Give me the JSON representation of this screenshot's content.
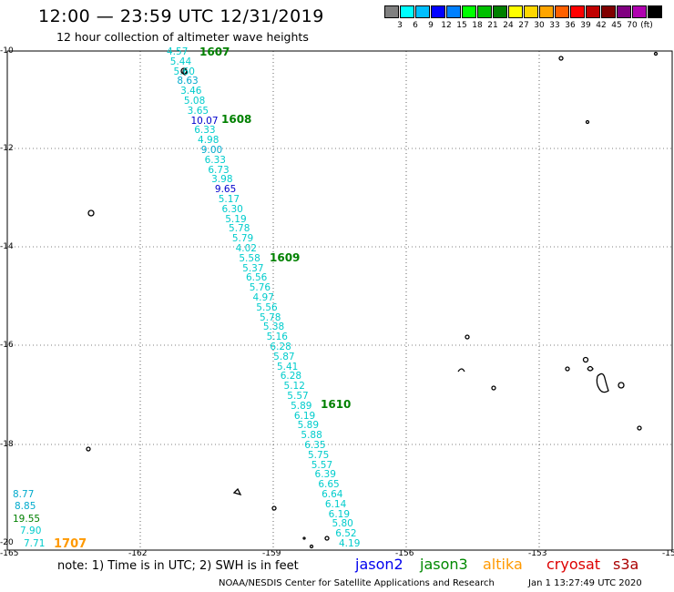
{
  "title": "12:00 — 23:59 UTC 12/31/2019",
  "subtitle": "12 hour collection of altimeter wave heights",
  "colorbar": {
    "colors": [
      "#808080",
      "#00ffff",
      "#00bfff",
      "#0000ff",
      "#0080ff",
      "#00ff00",
      "#00c000",
      "#008000",
      "#ffff00",
      "#ffd700",
      "#ffa500",
      "#ff6000",
      "#ff0000",
      "#c00000",
      "#800000",
      "#800080",
      "#b000b0",
      "#000000"
    ],
    "labels": [
      "3",
      "6",
      "9",
      "12",
      "15",
      "18",
      "21",
      "24",
      "27",
      "30",
      "33",
      "36",
      "39",
      "42",
      "45",
      "70"
    ],
    "unit": "(ft)"
  },
  "lat_labels": [
    "-10",
    "-12",
    "-14",
    "-16",
    "-18",
    "-20"
  ],
  "lon_labels": [
    "-165",
    "-162",
    "-159",
    "-156",
    "-153",
    "-15"
  ],
  "track_values": [
    {
      "v": "4.57",
      "c": "#00cccc"
    },
    {
      "v": "5.44",
      "c": "#00cccc"
    },
    {
      "v": "5.60",
      "c": "#00cccc"
    },
    {
      "v": "8.63",
      "c": "#00aacc"
    },
    {
      "v": "3.46",
      "c": "#00cccc"
    },
    {
      "v": "5.08",
      "c": "#00cccc"
    },
    {
      "v": "3.65",
      "c": "#00cccc"
    },
    {
      "v": "10.07",
      "c": "#0000cc"
    },
    {
      "v": "6.33",
      "c": "#00cccc"
    },
    {
      "v": "4.98",
      "c": "#00cccc"
    },
    {
      "v": "9.00",
      "c": "#00aacc"
    },
    {
      "v": "6.33",
      "c": "#00cccc"
    },
    {
      "v": "6.73",
      "c": "#00cccc"
    },
    {
      "v": "3.98",
      "c": "#00cccc"
    },
    {
      "v": "9.65",
      "c": "#0000cc"
    },
    {
      "v": "5.17",
      "c": "#00cccc"
    },
    {
      "v": "6.30",
      "c": "#00cccc"
    },
    {
      "v": "5.19",
      "c": "#00cccc"
    },
    {
      "v": "5.78",
      "c": "#00cccc"
    },
    {
      "v": "5.79",
      "c": "#00cccc"
    },
    {
      "v": "4.02",
      "c": "#00cccc"
    },
    {
      "v": "5.58",
      "c": "#00cccc"
    },
    {
      "v": "5.37",
      "c": "#00cccc"
    },
    {
      "v": "6.56",
      "c": "#00cccc"
    },
    {
      "v": "5.76",
      "c": "#00cccc"
    },
    {
      "v": "4.97",
      "c": "#00cccc"
    },
    {
      "v": "5.56",
      "c": "#00cccc"
    },
    {
      "v": "5.78",
      "c": "#00cccc"
    },
    {
      "v": "5.38",
      "c": "#00cccc"
    },
    {
      "v": "5.16",
      "c": "#00cccc"
    },
    {
      "v": "6.28",
      "c": "#00cccc"
    },
    {
      "v": "5.87",
      "c": "#00cccc"
    },
    {
      "v": "5.41",
      "c": "#00cccc"
    },
    {
      "v": "6.28",
      "c": "#00cccc"
    },
    {
      "v": "5.12",
      "c": "#00cccc"
    },
    {
      "v": "5.57",
      "c": "#00cccc"
    },
    {
      "v": "5.89",
      "c": "#00cccc"
    },
    {
      "v": "6.19",
      "c": "#00cccc"
    },
    {
      "v": "5.89",
      "c": "#00cccc"
    },
    {
      "v": "5.88",
      "c": "#00cccc"
    },
    {
      "v": "6.35",
      "c": "#00cccc"
    },
    {
      "v": "5.75",
      "c": "#00cccc"
    },
    {
      "v": "5.57",
      "c": "#00cccc"
    },
    {
      "v": "6.39",
      "c": "#00cccc"
    },
    {
      "v": "6.65",
      "c": "#00cccc"
    },
    {
      "v": "6.64",
      "c": "#00cccc"
    },
    {
      "v": "6.14",
      "c": "#00cccc"
    },
    {
      "v": "6.19",
      "c": "#00cccc"
    },
    {
      "v": "5.80",
      "c": "#00cccc"
    },
    {
      "v": "6.52",
      "c": "#00cccc"
    },
    {
      "v": "4.19",
      "c": "#00cccc"
    }
  ],
  "track_times": [
    "1607",
    "1608",
    "1609",
    "1610"
  ],
  "corner_values": [
    {
      "v": "8.77",
      "c": "#00aacc"
    },
    {
      "v": "8.85",
      "c": "#00aacc"
    },
    {
      "v": "19.55",
      "c": "#008000"
    },
    {
      "v": "7.90",
      "c": "#00cccc"
    },
    {
      "v": "7.71",
      "c": "#00cccc"
    }
  ],
  "corner_time": "1707",
  "note": "note: 1) Time is in UTC; 2) SWH is in feet",
  "satellites": [
    {
      "name": "jason2",
      "color": "#0000ee"
    },
    {
      "name": "jason3",
      "color": "#008800"
    },
    {
      "name": "altika",
      "color": "#ff9900"
    },
    {
      "name": "cryosat",
      "color": "#dd0000"
    },
    {
      "name": "s3a",
      "color": "#aa0000"
    }
  ],
  "credit": "NOAA/NESDIS Center for Satellite Applications and Research",
  "timestamp": "Jan  1 13:27:49 UTC 2020"
}
